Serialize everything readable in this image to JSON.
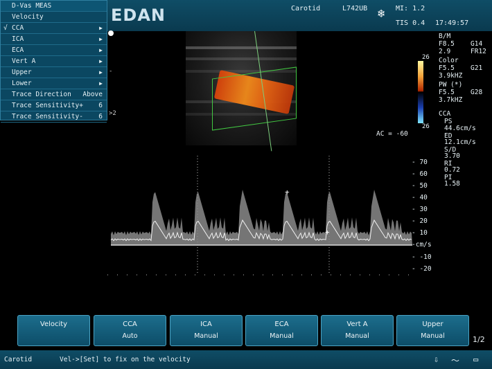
{
  "header": {
    "logo": "EDAN",
    "exam": "Carotid",
    "probe": "L742UB",
    "mi": "MI: 1.2",
    "tis": "TIS 0.4",
    "time": "17:49:57",
    "freeze_icon": "snowflake-icon"
  },
  "menu": {
    "title": "D-Vas MEAS",
    "items": [
      {
        "label": "Velocity",
        "value": "",
        "checked": false,
        "arrow": false
      },
      {
        "label": "CCA",
        "value": "",
        "checked": true,
        "arrow": true
      },
      {
        "label": "ICA",
        "value": "",
        "checked": false,
        "arrow": true
      },
      {
        "label": "ECA",
        "value": "",
        "checked": false,
        "arrow": true
      },
      {
        "label": "Vert A",
        "value": "",
        "checked": false,
        "arrow": true
      },
      {
        "label": "Upper",
        "value": "",
        "checked": false,
        "arrow": true
      },
      {
        "label": "Lower",
        "value": "",
        "checked": false,
        "arrow": true
      },
      {
        "label": "Trace Direction",
        "value": "Above",
        "checked": false,
        "arrow": false
      },
      {
        "label": "Trace Sensitivity+",
        "value": "6",
        "checked": false,
        "arrow": false
      },
      {
        "label": "Trace Sensitivity-",
        "value": "6",
        "checked": false,
        "arrow": false
      }
    ],
    "check_mark": "√",
    "arrow_glyph": "▶"
  },
  "params": {
    "bm": {
      "title": "B/M",
      "f": "F8.5",
      "g": "G14",
      "v": "2.9",
      "fr": "FR12"
    },
    "color": {
      "title": "Color",
      "f": "F5.5",
      "g": "G21",
      "prf": "3.9kHZ"
    },
    "pw": {
      "title": "PW (*)",
      "f": "F5.5",
      "g": "G28",
      "prf": "3.7kHZ"
    },
    "colorbar_top": "26",
    "colorbar_bottom": "26",
    "meas": {
      "vessel": "CCA",
      "ps_label": "PS",
      "ps": "44.6cm/s",
      "ed_label": "ED",
      "ed": "12.1cm/s",
      "sd_label": "S/D",
      "sd": "3.70",
      "ri_label": "RI",
      "ri": "0.72",
      "pi_label": "PI",
      "pi": "1.58"
    },
    "ac": "AC = -60",
    "depth_marker": ">2",
    "left_tick": "-"
  },
  "spectrum": {
    "scale": [
      "- 70",
      "- 60",
      "- 50",
      "- 40",
      "- 30",
      "- 20",
      "- 10",
      "-cm/s",
      "- -10",
      "- -20"
    ],
    "baseline_unit": "cm/s"
  },
  "softkeys": [
    {
      "l1": "Velocity",
      "l2": ""
    },
    {
      "l1": "CCA",
      "l2": "Auto"
    },
    {
      "l1": "ICA",
      "l2": "Manual"
    },
    {
      "l1": "ECA",
      "l2": "Manual"
    },
    {
      "l1": "Vert A",
      "l2": "Manual"
    },
    {
      "l1": "Upper",
      "l2": "Manual"
    }
  ],
  "page_indicator": "1/2",
  "status": {
    "exam": "Carotid",
    "hint": "Vel->[Set] to fix on the velocity",
    "icons": [
      "usb-icon",
      "ecg-icon",
      "battery-icon"
    ]
  }
}
